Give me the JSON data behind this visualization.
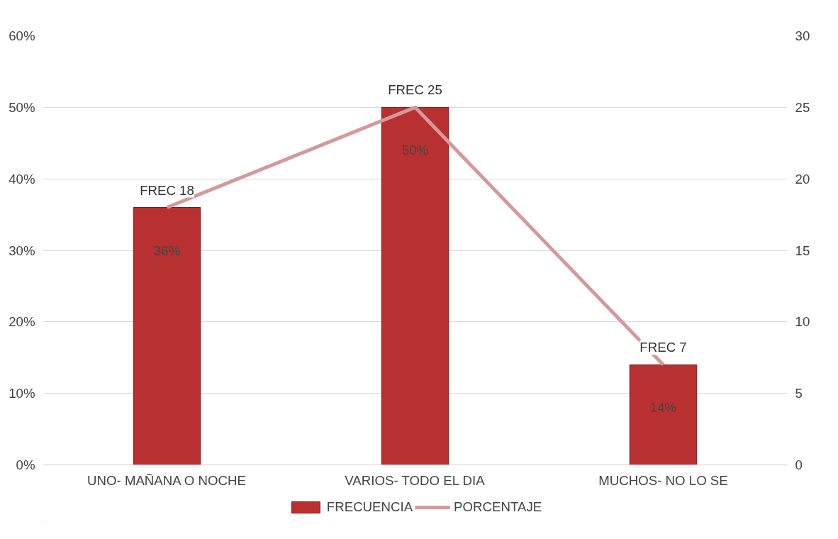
{
  "chart_data": {
    "type": "bar",
    "categories": [
      "UNO- MAÑANA O NOCHE",
      "VARIOS- TODO EL DIA",
      "MUCHOS- NO LO SE"
    ],
    "series": [
      {
        "name": "FRECUENCIA",
        "type": "bar",
        "axis": "y2",
        "color": "#b83030",
        "values": [
          18,
          25,
          7
        ],
        "value_labels": [
          "FREC 18",
          "FREC 25",
          "FREC 7"
        ]
      },
      {
        "name": "PORCENTAJE",
        "type": "line",
        "color": "#d49a9a",
        "values": [
          36,
          50,
          14
        ],
        "value_labels": [
          "36%",
          "50%",
          "14%"
        ]
      }
    ],
    "ylim": [
      0,
      60
    ],
    "yticks": [
      {
        "value": 0,
        "label": "0%"
      },
      {
        "value": 10,
        "label": "10%"
      },
      {
        "value": 20,
        "label": "20%"
      },
      {
        "value": 30,
        "label": "30%"
      },
      {
        "value": 40,
        "label": "40%"
      },
      {
        "value": 50,
        "label": "50%"
      },
      {
        "value": 60,
        "label": "60%"
      }
    ],
    "y2lim": [
      0,
      30
    ],
    "y2ticks": [
      0,
      5,
      10,
      15,
      20,
      25,
      30
    ],
    "grid": "y",
    "legend": "bottom",
    "line_style": "solid",
    "marker": "none"
  }
}
